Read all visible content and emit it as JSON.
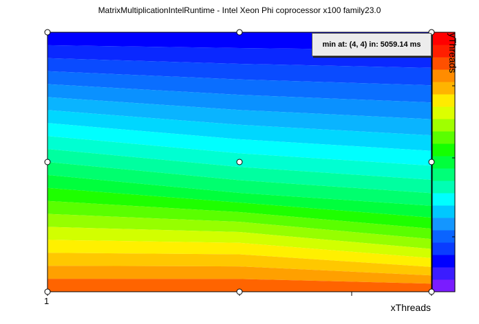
{
  "title": "MatrixMultiplicationIntelRuntime - Intel Xeon Phi coprocessor x100 family23.0",
  "info_box": "min at: (4, 4) in: 5059.14 ms",
  "chart_data": {
    "type": "heatmap",
    "title": "MatrixMultiplicationIntelRuntime - Intel Xeon Phi coprocessor x100 family23.0",
    "xlabel": "xThreads",
    "ylabel": "yThreads",
    "x_tick_labels": [
      "1"
    ],
    "x_points": [
      1,
      2,
      3
    ],
    "y_points": [
      1,
      2,
      3
    ],
    "sample_markers": [
      [
        1,
        1
      ],
      [
        2,
        1
      ],
      [
        3,
        1
      ],
      [
        1,
        2
      ],
      [
        2,
        2
      ],
      [
        3,
        2
      ],
      [
        1,
        3
      ],
      [
        2,
        3
      ],
      [
        3,
        3
      ]
    ],
    "colormap": [
      "#7a1cff",
      "#3b1cff",
      "#0000ff",
      "#0a3cff",
      "#0a64ff",
      "#1496ff",
      "#00c8ff",
      "#00ffff",
      "#00ffb4",
      "#00ff78",
      "#00ff3c",
      "#14ff00",
      "#5aff00",
      "#a0ff00",
      "#dcff00",
      "#ffeb00",
      "#ffb400",
      "#ff8c00",
      "#ff5000",
      "#ff1e00",
      "#ff0000"
    ],
    "min_annotation": "min at: (4, 4) in: 5059.14 ms"
  }
}
